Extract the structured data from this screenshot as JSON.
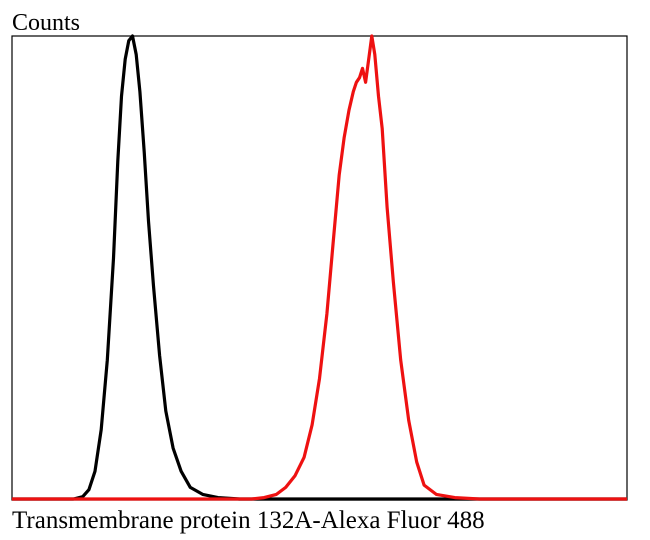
{
  "chart_data": {
    "type": "line",
    "title": "",
    "xlabel": "Transmembrane protein 132A-Alexa Fluor 488",
    "ylabel": "Counts",
    "xlim": [
      0,
      1000
    ],
    "ylim": [
      0,
      100
    ],
    "grid": false,
    "legend": "none",
    "series": [
      {
        "color": "#000000",
        "points": [
          [
            0,
            0
          ],
          [
            100,
            0
          ],
          [
            115,
            0.5
          ],
          [
            125,
            2
          ],
          [
            135,
            6
          ],
          [
            145,
            15
          ],
          [
            155,
            30
          ],
          [
            165,
            52
          ],
          [
            172,
            73
          ],
          [
            178,
            87
          ],
          [
            184,
            95
          ],
          [
            190,
            99
          ],
          [
            196,
            100
          ],
          [
            202,
            96
          ],
          [
            208,
            88
          ],
          [
            215,
            75
          ],
          [
            222,
            60
          ],
          [
            230,
            46
          ],
          [
            240,
            31
          ],
          [
            250,
            19
          ],
          [
            262,
            11
          ],
          [
            275,
            6
          ],
          [
            290,
            2.5
          ],
          [
            310,
            1
          ],
          [
            335,
            0.3
          ],
          [
            370,
            0
          ],
          [
            1000,
            0
          ]
        ]
      },
      {
        "color": "#ee1111",
        "points": [
          [
            0,
            0
          ],
          [
            390,
            0
          ],
          [
            410,
            0.3
          ],
          [
            430,
            1
          ],
          [
            445,
            2.5
          ],
          [
            460,
            5
          ],
          [
            475,
            9
          ],
          [
            488,
            16
          ],
          [
            500,
            26
          ],
          [
            512,
            40
          ],
          [
            522,
            55
          ],
          [
            532,
            70
          ],
          [
            540,
            78
          ],
          [
            548,
            84
          ],
          [
            555,
            88
          ],
          [
            560,
            90
          ],
          [
            565,
            91
          ],
          [
            570,
            93
          ],
          [
            575,
            90
          ],
          [
            580,
            95
          ],
          [
            585,
            100
          ],
          [
            590,
            96
          ],
          [
            596,
            87
          ],
          [
            602,
            80
          ],
          [
            610,
            63
          ],
          [
            620,
            47
          ],
          [
            632,
            30
          ],
          [
            645,
            17
          ],
          [
            658,
            8
          ],
          [
            670,
            3
          ],
          [
            690,
            1
          ],
          [
            720,
            0.3
          ],
          [
            760,
            0
          ],
          [
            1000,
            0
          ]
        ]
      }
    ]
  }
}
